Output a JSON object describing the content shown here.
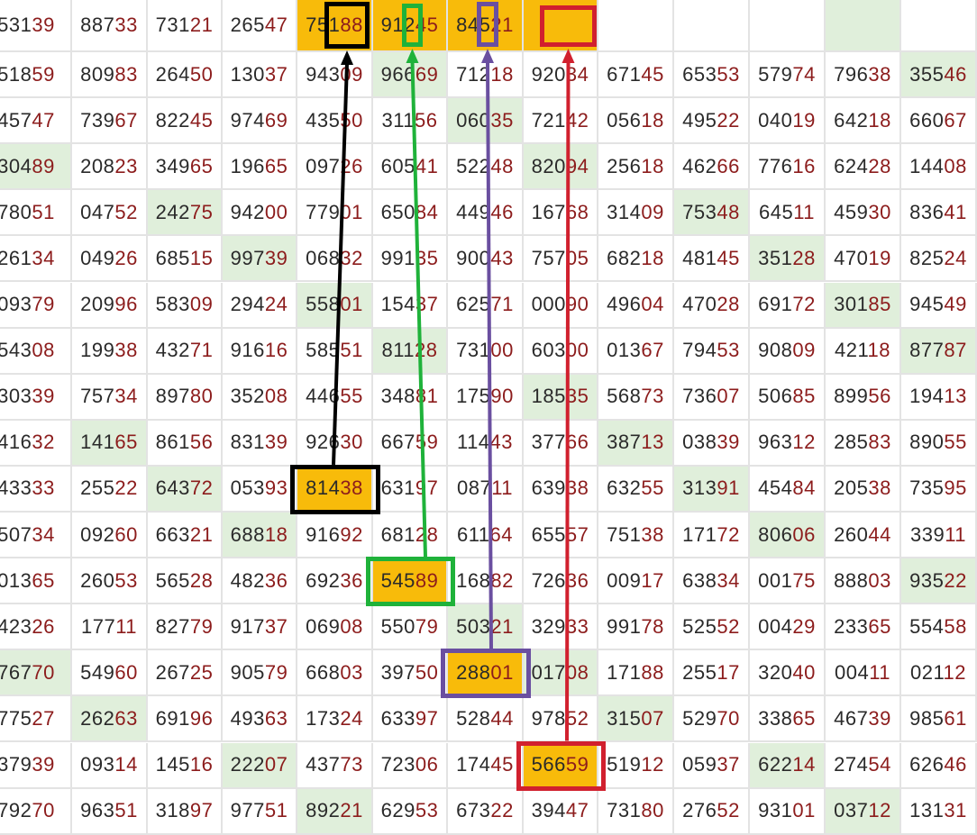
{
  "table": {
    "rows": [
      [
        "53139",
        "88733",
        "73121",
        "26547",
        "75188",
        "91245",
        "84521",
        "",
        "",
        "",
        "",
        "",
        ""
      ],
      [
        "51859",
        "80983",
        "26450",
        "13037",
        "94309",
        "96669",
        "71218",
        "92034",
        "67145",
        "65353",
        "57974",
        "79638",
        "35546"
      ],
      [
        "45747",
        "73967",
        "82245",
        "97469",
        "43550",
        "31156",
        "06035",
        "72142",
        "05618",
        "49522",
        "04019",
        "64218",
        "66067"
      ],
      [
        "30489",
        "20823",
        "34965",
        "19665",
        "09726",
        "60541",
        "52248",
        "82094",
        "25618",
        "46266",
        "77616",
        "62428",
        "14408"
      ],
      [
        "78051",
        "04752",
        "24275",
        "94200",
        "77901",
        "65084",
        "44946",
        "16768",
        "31409",
        "75348",
        "64511",
        "45930",
        "83641"
      ],
      [
        "26134",
        "04926",
        "68515",
        "99739",
        "06832",
        "99135",
        "90043",
        "75705",
        "68218",
        "48145",
        "35128",
        "47019",
        "82524"
      ],
      [
        "09379",
        "20996",
        "58309",
        "29424",
        "55801",
        "15437",
        "62571",
        "00090",
        "49604",
        "47028",
        "69172",
        "30185",
        "94549"
      ],
      [
        "54308",
        "19938",
        "43271",
        "91616",
        "58551",
        "81128",
        "73100",
        "60300",
        "01367",
        "79453",
        "90809",
        "42118",
        "87787"
      ],
      [
        "30339",
        "75734",
        "89780",
        "35208",
        "44655",
        "34881",
        "17590",
        "18535",
        "56873",
        "73607",
        "50685",
        "89956",
        "19413"
      ],
      [
        "41632",
        "14165",
        "86156",
        "83139",
        "92630",
        "66759",
        "11443",
        "37766",
        "38713",
        "03839",
        "96312",
        "28583",
        "89055"
      ],
      [
        "43333",
        "25522",
        "64372",
        "05393",
        "81438",
        "63197",
        "08711",
        "63938",
        "63255",
        "31391",
        "45484",
        "20538",
        "73595"
      ],
      [
        "50734",
        "09260",
        "66321",
        "68818",
        "91692",
        "68128",
        "61164",
        "65557",
        "75138",
        "17172",
        "80606",
        "26044",
        "33911"
      ],
      [
        "01365",
        "26053",
        "56528",
        "48236",
        "69236",
        "54589",
        "16882",
        "72636",
        "00917",
        "63834",
        "00175",
        "88803",
        "93522"
      ],
      [
        "42326",
        "17711",
        "82779",
        "91737",
        "06908",
        "55079",
        "50321",
        "32933",
        "99178",
        "52552",
        "00429",
        "23365",
        "55458"
      ],
      [
        "76770",
        "54960",
        "26725",
        "90579",
        "66803",
        "39750",
        "28801",
        "01708",
        "17188",
        "25517",
        "32040",
        "00411",
        "02112"
      ],
      [
        "77527",
        "26263",
        "69196",
        "49363",
        "17324",
        "63397",
        "52844",
        "97852",
        "31507",
        "52970",
        "33865",
        "46739",
        "98561"
      ],
      [
        "37939",
        "09314",
        "14516",
        "22207",
        "43773",
        "72306",
        "17445",
        "56659",
        "51912",
        "05937",
        "62214",
        "27454",
        "62646"
      ],
      [
        "79270",
        "96351",
        "31897",
        "97751",
        "89221",
        "62953",
        "67322",
        "39447",
        "73180",
        "27652",
        "93101",
        "03712",
        "13131"
      ]
    ],
    "highlighted_cells": [
      [
        0,
        11
      ],
      [
        1,
        5
      ],
      [
        1,
        12
      ],
      [
        2,
        6
      ],
      [
        3,
        0
      ],
      [
        3,
        7
      ],
      [
        4,
        2
      ],
      [
        4,
        9
      ],
      [
        5,
        3
      ],
      [
        5,
        10
      ],
      [
        6,
        4
      ],
      [
        6,
        11
      ],
      [
        7,
        5
      ],
      [
        7,
        12
      ],
      [
        8,
        7
      ],
      [
        9,
        1
      ],
      [
        9,
        8
      ],
      [
        10,
        2
      ],
      [
        10,
        9
      ],
      [
        11,
        3
      ],
      [
        11,
        10
      ],
      [
        12,
        12
      ],
      [
        13,
        6
      ],
      [
        14,
        0
      ],
      [
        14,
        7
      ],
      [
        15,
        1
      ],
      [
        15,
        8
      ],
      [
        16,
        3
      ],
      [
        16,
        10
      ],
      [
        17,
        4
      ],
      [
        17,
        11
      ]
    ],
    "orange_cells": [
      [
        0,
        4
      ],
      [
        0,
        5
      ],
      [
        0,
        6
      ],
      [
        0,
        7
      ],
      [
        10,
        4
      ],
      [
        12,
        5
      ],
      [
        14,
        6
      ],
      [
        16,
        7
      ]
    ]
  },
  "colors": {
    "digit_dark": "#2a2a2a",
    "digit_red": "#8c1c1c",
    "highlight_green": "#e0efdb",
    "orange": "#f8bb0a",
    "grid_line": "#e3e3e3"
  },
  "annotations": [
    {
      "name": "black-arrow",
      "color": "#000000",
      "from_cell": [
        10,
        4
      ],
      "to_cell": [
        0,
        4
      ]
    },
    {
      "name": "green-arrow",
      "color": "#1fb23a",
      "from_cell": [
        12,
        5
      ],
      "to_cell": [
        0,
        5
      ]
    },
    {
      "name": "purple-arrow",
      "color": "#6a4fa0",
      "from_cell": [
        14,
        6
      ],
      "to_cell": [
        0,
        6
      ]
    },
    {
      "name": "red-arrow",
      "color": "#d1202e",
      "from_cell": [
        16,
        7
      ],
      "to_cell": [
        0,
        7
      ]
    }
  ]
}
